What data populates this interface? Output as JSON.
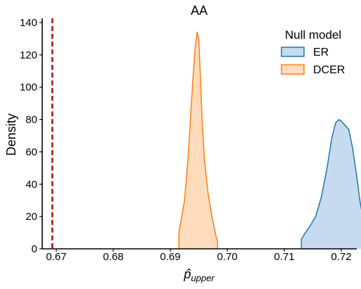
{
  "chart_data": {
    "type": "area",
    "title": "AA",
    "xlabel_base": "p̂",
    "xlabel_sub": "upper",
    "ylabel": "Density",
    "xlim": [
      0.667,
      0.7265
    ],
    "ylim": [
      0,
      142
    ],
    "x_ticks": [
      0.67,
      0.68,
      0.69,
      0.7,
      0.71,
      0.72
    ],
    "x_tick_labels": [
      "0.67",
      "0.68",
      "0.69",
      "0.70",
      "0.71",
      "0.72"
    ],
    "y_ticks": [
      0,
      20,
      40,
      60,
      80,
      100,
      120,
      140
    ],
    "y_tick_labels": [
      "0",
      "20",
      "40",
      "60",
      "80",
      "100",
      "120",
      "140"
    ],
    "grid": false,
    "legend": {
      "title": "Null model",
      "placement": "top-right"
    },
    "reference_line": {
      "x": 0.6693,
      "color": "#b30000",
      "style": "dashed"
    },
    "series": [
      {
        "name": "ER",
        "line_color": "#1f77b4",
        "fill_color": "#c6dbef",
        "x": [
          0.713,
          0.713,
          0.7137,
          0.7145,
          0.7155,
          0.7165,
          0.7175,
          0.7183,
          0.719,
          0.7196,
          0.72,
          0.7205,
          0.7213,
          0.722,
          0.7227,
          0.7233,
          0.724,
          0.7247,
          0.7247
        ],
        "y": [
          0,
          6,
          10,
          14,
          20,
          32,
          50,
          68,
          78,
          80,
          79,
          77,
          74,
          62,
          45,
          29,
          15,
          7,
          0
        ]
      },
      {
        "name": "DCER",
        "line_color": "#ff7f0e",
        "fill_color": "#ffdcbc",
        "x": [
          0.6915,
          0.6915,
          0.6925,
          0.6932,
          0.6937,
          0.6941,
          0.6944,
          0.6947,
          0.695,
          0.6953,
          0.6956,
          0.696,
          0.6966,
          0.6973,
          0.698,
          0.6983,
          0.6983
        ],
        "y": [
          0,
          10,
          30,
          60,
          90,
          112,
          126,
          134,
          130,
          105,
          78,
          55,
          35,
          20,
          8,
          4,
          0
        ]
      }
    ]
  }
}
